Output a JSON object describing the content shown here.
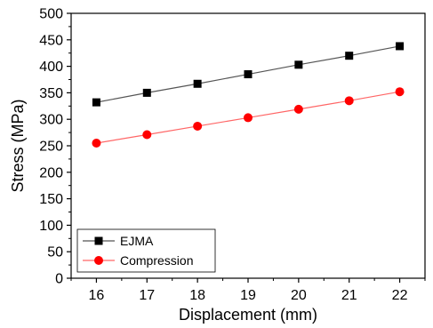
{
  "chart_data": {
    "type": "line",
    "title": "",
    "xlabel": "Displacement (mm)",
    "ylabel": "Stress (MPa)",
    "x": [
      16,
      17,
      18,
      19,
      20,
      21,
      22
    ],
    "xlim": [
      15.5,
      22.5
    ],
    "ylim": [
      0,
      500
    ],
    "xticks": [
      "16",
      "17",
      "18",
      "19",
      "20",
      "21",
      "22"
    ],
    "yticks": [
      "0",
      "50",
      "100",
      "150",
      "200",
      "250",
      "300",
      "350",
      "400",
      "450",
      "500"
    ],
    "grid": false,
    "legend_position": "bottom-left",
    "series": [
      {
        "name": "EJMA",
        "values": [
          332,
          350,
          367,
          385,
          403,
          420,
          438
        ],
        "marker": "square",
        "marker_color": "#000000",
        "line_color": "#555555"
      },
      {
        "name": "Compression",
        "values": [
          255,
          271,
          287,
          303,
          319,
          335,
          352
        ],
        "marker": "circle",
        "marker_color": "#ff0000",
        "line_color": "#ff6666"
      }
    ]
  }
}
